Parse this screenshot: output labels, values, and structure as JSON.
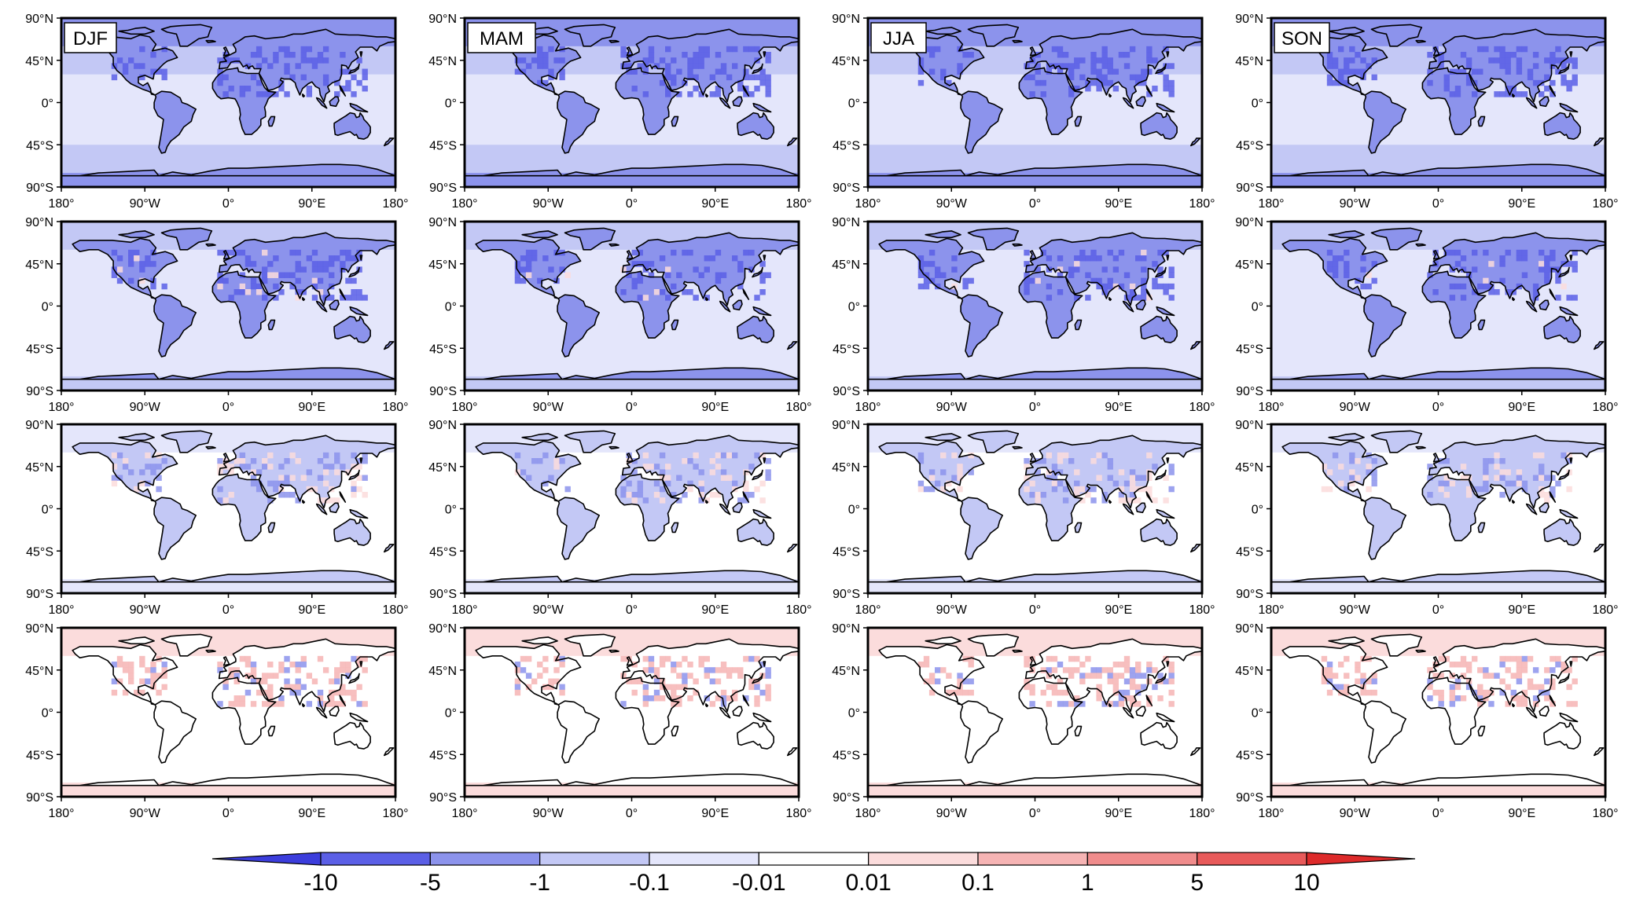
{
  "chart_data": {
    "type": "map-panel-grid",
    "rows": 4,
    "columns": 4,
    "season_labels": [
      "DJF",
      "MAM",
      "JJA",
      "SON"
    ],
    "lat_labels": [
      "90°N",
      "45°N",
      "0°",
      "45°S",
      "90°S"
    ],
    "lon_labels": [
      "180°",
      "90°W",
      "0°",
      "90°E",
      "180°"
    ],
    "colorbar": {
      "tick_labels": [
        "-10",
        "-5",
        "-1",
        "-0.1",
        "-0.01",
        "0.01",
        "0.1",
        "1",
        "5",
        "10"
      ],
      "colors": [
        "#3b3ddc",
        "#5b5fe6",
        "#8c93ec",
        "#c3c8f5",
        "#e4e6fb",
        "#ffffff",
        "#fbdcdc",
        "#f6b4b4",
        "#f08c8c",
        "#e85a5a",
        "#dd2a2a"
      ]
    },
    "panels_note": "rows: decreasing negative magnitude from top row to bottom row; bottom row shows mixed small positive values",
    "row_intensity": [
      0.95,
      0.75,
      0.45,
      0.25
    ],
    "row_positive": [
      0.0,
      0.05,
      0.3,
      0.6
    ]
  }
}
